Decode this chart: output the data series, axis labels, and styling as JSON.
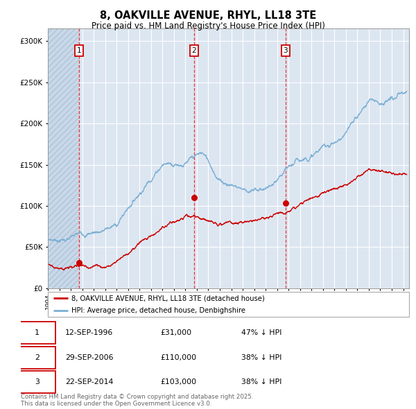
{
  "title": "8, OAKVILLE AVENUE, RHYL, LL18 3TE",
  "subtitle": "Price paid vs. HM Land Registry's House Price Index (HPI)",
  "title_fontsize": 10.5,
  "subtitle_fontsize": 8.5,
  "xlim_start": 1994.0,
  "xlim_end": 2025.5,
  "ylim_min": 0,
  "ylim_max": 315000,
  "hpi_color": "#7bafd4",
  "price_color": "#cc0000",
  "vline_color": "#ee3333",
  "bg_color": "#dce6f1",
  "hatch_color": "#c8d8e8",
  "grid_color": "#ffffff",
  "purchases": [
    {
      "date_year": 1996.71,
      "price": 31000,
      "label": "1"
    },
    {
      "date_year": 2006.75,
      "price": 110000,
      "label": "2"
    },
    {
      "date_year": 2014.73,
      "price": 103000,
      "label": "3"
    }
  ],
  "legend_entries": [
    "8, OAKVILLE AVENUE, RHYL, LL18 3TE (detached house)",
    "HPI: Average price, detached house, Denbighshire"
  ],
  "table_rows": [
    [
      "1",
      "12-SEP-1996",
      "£31,000",
      "47% ↓ HPI"
    ],
    [
      "2",
      "29-SEP-2006",
      "£110,000",
      "38% ↓ HPI"
    ],
    [
      "3",
      "22-SEP-2014",
      "£103,000",
      "38% ↓ HPI"
    ]
  ],
  "footnote": "Contains HM Land Registry data © Crown copyright and database right 2025.\nThis data is licensed under the Open Government Licence v3.0.",
  "label_box_edge": "#cc0000"
}
